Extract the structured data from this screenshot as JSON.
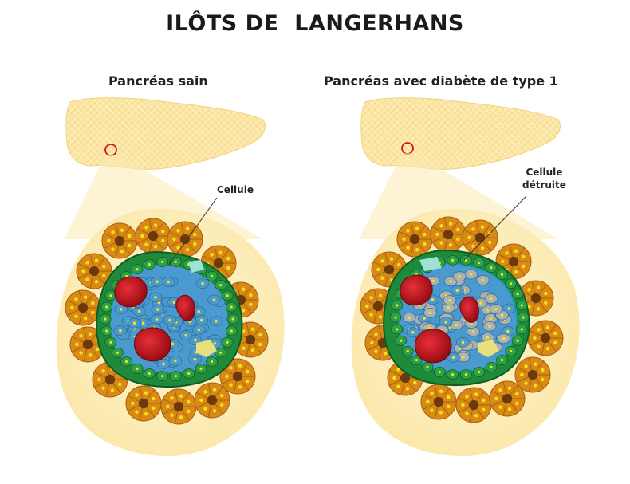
{
  "title": "ILÔTS DE  LANGERHANS",
  "panels": {
    "left": {
      "subtitle": "Pancréas sain",
      "callout": "Cellule"
    },
    "right": {
      "subtitle": "Pancréas avec diabète de type 1",
      "callout": "Cellule\ndétruite"
    }
  },
  "colors": {
    "pancreas": "#fbe6a6",
    "acinar": "#d98a16",
    "acinar_center": "#6b3a0a",
    "islet_border": "#1f8a3a",
    "beta_cell": "#4a9ad0",
    "destroyed_cell": "#b3b3b3",
    "capillary": "#c0141c",
    "nucleus": "#f2e21a"
  }
}
